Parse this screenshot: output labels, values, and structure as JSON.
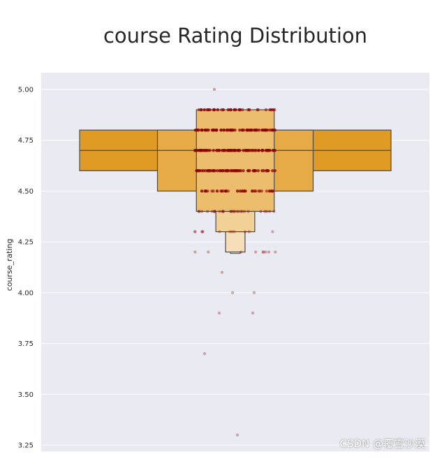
{
  "chart_data": {
    "type": "boxen",
    "title": "course Rating Distribution",
    "ylabel": "course_rating",
    "xlabel": "",
    "ylim": [
      3.22,
      5.08
    ],
    "yticks": [
      "5.00",
      "4.75",
      "4.50",
      "4.25",
      "4.00",
      "3.75",
      "3.50",
      "3.25"
    ],
    "ytick_values": [
      5.0,
      4.75,
      4.5,
      4.25,
      4.0,
      3.75,
      3.5,
      3.25
    ],
    "grid": true,
    "colors": {
      "plot_bg": "#eaeaf2",
      "box_main": "#e09b24",
      "box_2": "#e6aa46",
      "box_3": "#ebbd6c",
      "box_4": "#f2d196",
      "box_5": "#f6dfb8",
      "edge": "#4a4a4a",
      "point": "#8b0000",
      "grid": "#ffffff"
    },
    "letter_values": [
      {
        "lo": 4.6,
        "hi": 4.8,
        "half_width": 0.5,
        "color_key": "box_main"
      },
      {
        "lo": 4.5,
        "hi": 4.8,
        "half_width": 0.25,
        "color_key": "box_2"
      },
      {
        "lo": 4.4,
        "hi": 4.9,
        "half_width": 0.125,
        "color_key": "box_3"
      },
      {
        "lo": 4.3,
        "hi": 4.4,
        "half_width": 0.0625,
        "color_key": "box_4"
      },
      {
        "lo": 4.2,
        "hi": 4.3,
        "half_width": 0.03125,
        "color_key": "box_5"
      }
    ],
    "median": 4.7,
    "strip_points": [
      {
        "y": 5.0,
        "n": 1,
        "spread": 0.0,
        "alpha": 0.35
      },
      {
        "y": 4.9,
        "n": 45,
        "spread": 0.13,
        "alpha": 0.55
      },
      {
        "y": 4.8,
        "n": 70,
        "spread": 0.13,
        "alpha": 0.75
      },
      {
        "y": 4.7,
        "n": 70,
        "spread": 0.13,
        "alpha": 0.75
      },
      {
        "y": 4.6,
        "n": 65,
        "spread": 0.13,
        "alpha": 0.75
      },
      {
        "y": 4.5,
        "n": 45,
        "spread": 0.13,
        "alpha": 0.55
      },
      {
        "y": 4.4,
        "n": 28,
        "spread": 0.13,
        "alpha": 0.35
      },
      {
        "y": 4.3,
        "n": 12,
        "spread": 0.13,
        "alpha": 0.3
      },
      {
        "y": 4.2,
        "n": 9,
        "spread": 0.13,
        "alpha": 0.3
      },
      {
        "y": 4.1,
        "n": 1,
        "spread": 0.0,
        "alpha": 0.3
      },
      {
        "y": 4.0,
        "n": 2,
        "spread": 0.05,
        "alpha": 0.3
      },
      {
        "y": 3.9,
        "n": 2,
        "spread": 0.07,
        "alpha": 0.3
      },
      {
        "y": 3.7,
        "n": 1,
        "spread": 0.0,
        "alpha": 0.3
      },
      {
        "y": 3.3,
        "n": 1,
        "spread": 0.0,
        "alpha": 0.3
      }
    ]
  },
  "watermark": "CSDN @覆雪沙漠"
}
